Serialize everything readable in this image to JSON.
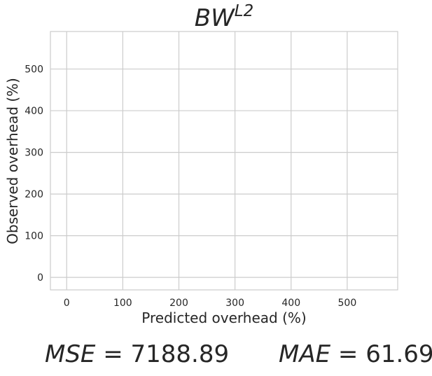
{
  "chart_data": {
    "type": "scatter",
    "title": {
      "base": "BW",
      "superscript": "L2"
    },
    "xlabel": "Predicted overhead (%)",
    "ylabel": "Observed overhead (%)",
    "xlim": [
      -29,
      590
    ],
    "ylim": [
      -30,
      590
    ],
    "x_ticks": [
      0,
      100,
      200,
      300,
      400,
      500
    ],
    "y_ticks": [
      0,
      100,
      200,
      300,
      400,
      500
    ],
    "grid": true,
    "series": [
      {
        "points": []
      }
    ],
    "metrics": [
      {
        "name": "MSE",
        "value": "7188.89"
      },
      {
        "name": "MAE",
        "value": "61.69"
      }
    ]
  },
  "colors": {
    "text": "#262626",
    "grid": "#cccccc",
    "frame": "#cccccc",
    "background": "#ffffff"
  }
}
